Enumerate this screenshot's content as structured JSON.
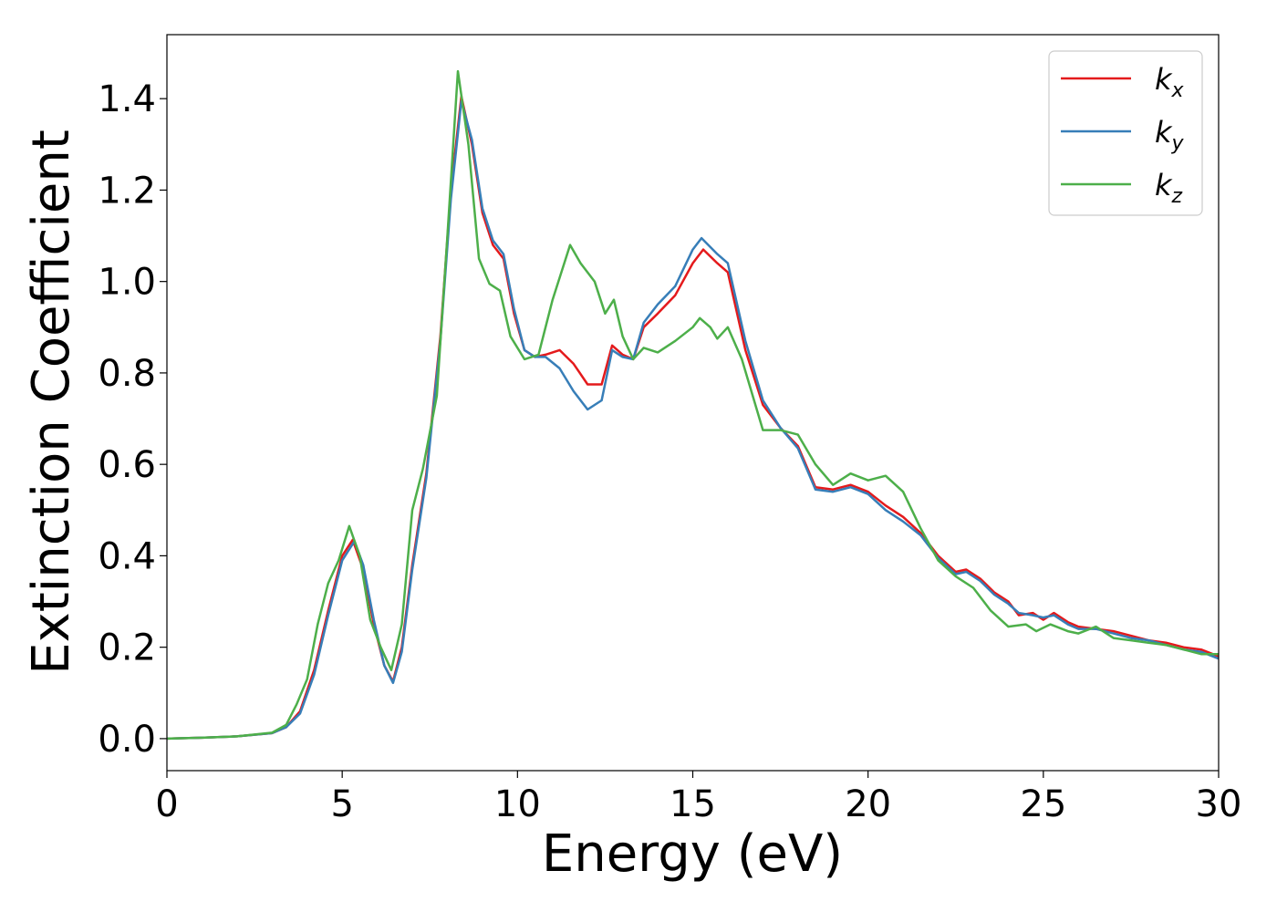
{
  "chart_data": {
    "type": "line",
    "title": "",
    "xlabel": "Energy (eV)",
    "ylabel": "Extinction Coefficient",
    "xlim": [
      0,
      30
    ],
    "ylim": [
      -0.07,
      1.54
    ],
    "xticks": [
      0,
      5,
      10,
      15,
      20,
      25,
      30
    ],
    "xtick_labels": [
      "0",
      "5",
      "10",
      "15",
      "20",
      "25",
      "30"
    ],
    "yticks": [
      0.0,
      0.2,
      0.4,
      0.6,
      0.8,
      1.0,
      1.2,
      1.4
    ],
    "ytick_labels": [
      "0.0",
      "0.2",
      "0.4",
      "0.6",
      "0.8",
      "1.0",
      "1.2",
      "1.4"
    ],
    "grid": false,
    "legend_position": "top-right",
    "series": [
      {
        "name": "k",
        "subscript": "x",
        "color": "#e41a1c",
        "points": [
          [
            0,
            0
          ],
          [
            1,
            0.002
          ],
          [
            2,
            0.005
          ],
          [
            3,
            0.012
          ],
          [
            3.4,
            0.025
          ],
          [
            3.8,
            0.06
          ],
          [
            4.2,
            0.15
          ],
          [
            4.6,
            0.28
          ],
          [
            5.0,
            0.4
          ],
          [
            5.3,
            0.435
          ],
          [
            5.6,
            0.37
          ],
          [
            5.9,
            0.25
          ],
          [
            6.2,
            0.16
          ],
          [
            6.45,
            0.125
          ],
          [
            6.7,
            0.2
          ],
          [
            7.0,
            0.38
          ],
          [
            7.4,
            0.58
          ],
          [
            7.8,
            0.88
          ],
          [
            8.1,
            1.2
          ],
          [
            8.4,
            1.405
          ],
          [
            8.7,
            1.3
          ],
          [
            9.0,
            1.15
          ],
          [
            9.3,
            1.08
          ],
          [
            9.6,
            1.05
          ],
          [
            9.9,
            0.93
          ],
          [
            10.2,
            0.85
          ],
          [
            10.5,
            0.835
          ],
          [
            10.8,
            0.84
          ],
          [
            11.2,
            0.85
          ],
          [
            11.6,
            0.82
          ],
          [
            12.0,
            0.775
          ],
          [
            12.4,
            0.775
          ],
          [
            12.7,
            0.86
          ],
          [
            13.0,
            0.84
          ],
          [
            13.3,
            0.83
          ],
          [
            13.6,
            0.9
          ],
          [
            14.0,
            0.93
          ],
          [
            14.5,
            0.97
          ],
          [
            15.0,
            1.04
          ],
          [
            15.3,
            1.07
          ],
          [
            15.7,
            1.04
          ],
          [
            16.0,
            1.02
          ],
          [
            16.5,
            0.85
          ],
          [
            17.0,
            0.73
          ],
          [
            17.5,
            0.68
          ],
          [
            18.0,
            0.64
          ],
          [
            18.5,
            0.55
          ],
          [
            19.0,
            0.545
          ],
          [
            19.5,
            0.555
          ],
          [
            20.0,
            0.54
          ],
          [
            20.5,
            0.51
          ],
          [
            21.0,
            0.485
          ],
          [
            21.5,
            0.45
          ],
          [
            22.0,
            0.4
          ],
          [
            22.5,
            0.365
          ],
          [
            22.8,
            0.37
          ],
          [
            23.2,
            0.35
          ],
          [
            23.6,
            0.32
          ],
          [
            24.0,
            0.3
          ],
          [
            24.3,
            0.27
          ],
          [
            24.7,
            0.275
          ],
          [
            25.0,
            0.26
          ],
          [
            25.3,
            0.275
          ],
          [
            25.7,
            0.255
          ],
          [
            26.0,
            0.245
          ],
          [
            26.5,
            0.24
          ],
          [
            27.0,
            0.235
          ],
          [
            27.5,
            0.225
          ],
          [
            28.0,
            0.215
          ],
          [
            28.5,
            0.21
          ],
          [
            29.0,
            0.2
          ],
          [
            29.5,
            0.195
          ],
          [
            30.0,
            0.18
          ]
        ]
      },
      {
        "name": "k",
        "subscript": "y",
        "color": "#377eb8",
        "points": [
          [
            0,
            0
          ],
          [
            1,
            0.002
          ],
          [
            2,
            0.005
          ],
          [
            3,
            0.012
          ],
          [
            3.4,
            0.025
          ],
          [
            3.8,
            0.055
          ],
          [
            4.2,
            0.14
          ],
          [
            4.6,
            0.27
          ],
          [
            5.0,
            0.39
          ],
          [
            5.35,
            0.432
          ],
          [
            5.6,
            0.38
          ],
          [
            5.9,
            0.26
          ],
          [
            6.2,
            0.16
          ],
          [
            6.45,
            0.122
          ],
          [
            6.7,
            0.19
          ],
          [
            7.0,
            0.37
          ],
          [
            7.4,
            0.57
          ],
          [
            7.8,
            0.87
          ],
          [
            8.1,
            1.18
          ],
          [
            8.4,
            1.395
          ],
          [
            8.7,
            1.31
          ],
          [
            9.0,
            1.16
          ],
          [
            9.3,
            1.09
          ],
          [
            9.6,
            1.06
          ],
          [
            9.9,
            0.94
          ],
          [
            10.2,
            0.85
          ],
          [
            10.5,
            0.835
          ],
          [
            10.8,
            0.835
          ],
          [
            11.2,
            0.81
          ],
          [
            11.6,
            0.76
          ],
          [
            12.0,
            0.72
          ],
          [
            12.4,
            0.74
          ],
          [
            12.7,
            0.85
          ],
          [
            13.0,
            0.835
          ],
          [
            13.3,
            0.83
          ],
          [
            13.6,
            0.91
          ],
          [
            14.0,
            0.95
          ],
          [
            14.5,
            0.99
          ],
          [
            15.0,
            1.07
          ],
          [
            15.25,
            1.095
          ],
          [
            15.7,
            1.06
          ],
          [
            16.0,
            1.04
          ],
          [
            16.5,
            0.87
          ],
          [
            17.0,
            0.74
          ],
          [
            17.5,
            0.68
          ],
          [
            18.0,
            0.635
          ],
          [
            18.5,
            0.545
          ],
          [
            19.0,
            0.54
          ],
          [
            19.5,
            0.55
          ],
          [
            20.0,
            0.535
          ],
          [
            20.5,
            0.5
          ],
          [
            21.0,
            0.475
          ],
          [
            21.5,
            0.445
          ],
          [
            22.0,
            0.395
          ],
          [
            22.5,
            0.36
          ],
          [
            22.8,
            0.365
          ],
          [
            23.2,
            0.345
          ],
          [
            23.6,
            0.315
          ],
          [
            24.0,
            0.295
          ],
          [
            24.3,
            0.275
          ],
          [
            24.7,
            0.27
          ],
          [
            25.0,
            0.265
          ],
          [
            25.3,
            0.27
          ],
          [
            25.7,
            0.25
          ],
          [
            26.0,
            0.24
          ],
          [
            26.5,
            0.24
          ],
          [
            27.0,
            0.23
          ],
          [
            27.5,
            0.22
          ],
          [
            28.0,
            0.215
          ],
          [
            28.5,
            0.205
          ],
          [
            29.0,
            0.195
          ],
          [
            29.5,
            0.19
          ],
          [
            30.0,
            0.175
          ]
        ]
      },
      {
        "name": "k",
        "subscript": "z",
        "color": "#4daf4a",
        "points": [
          [
            0,
            0
          ],
          [
            1,
            0.002
          ],
          [
            2,
            0.005
          ],
          [
            3,
            0.013
          ],
          [
            3.4,
            0.03
          ],
          [
            3.7,
            0.075
          ],
          [
            4.0,
            0.13
          ],
          [
            4.3,
            0.25
          ],
          [
            4.6,
            0.34
          ],
          [
            4.9,
            0.39
          ],
          [
            5.2,
            0.465
          ],
          [
            5.5,
            0.4
          ],
          [
            5.8,
            0.26
          ],
          [
            6.1,
            0.2
          ],
          [
            6.4,
            0.15
          ],
          [
            6.7,
            0.25
          ],
          [
            7.0,
            0.5
          ],
          [
            7.3,
            0.59
          ],
          [
            7.7,
            0.75
          ],
          [
            8.0,
            1.1
          ],
          [
            8.3,
            1.46
          ],
          [
            8.6,
            1.3
          ],
          [
            8.9,
            1.05
          ],
          [
            9.2,
            0.995
          ],
          [
            9.5,
            0.98
          ],
          [
            9.8,
            0.88
          ],
          [
            10.2,
            0.83
          ],
          [
            10.6,
            0.84
          ],
          [
            11.0,
            0.96
          ],
          [
            11.5,
            1.08
          ],
          [
            11.8,
            1.04
          ],
          [
            12.2,
            1.0
          ],
          [
            12.5,
            0.93
          ],
          [
            12.75,
            0.96
          ],
          [
            13.0,
            0.88
          ],
          [
            13.3,
            0.83
          ],
          [
            13.6,
            0.855
          ],
          [
            14.0,
            0.845
          ],
          [
            14.5,
            0.87
          ],
          [
            15.0,
            0.9
          ],
          [
            15.2,
            0.92
          ],
          [
            15.5,
            0.9
          ],
          [
            15.7,
            0.875
          ],
          [
            16.0,
            0.9
          ],
          [
            16.4,
            0.83
          ],
          [
            17.0,
            0.675
          ],
          [
            17.5,
            0.675
          ],
          [
            18.0,
            0.665
          ],
          [
            18.5,
            0.6
          ],
          [
            19.0,
            0.555
          ],
          [
            19.5,
            0.58
          ],
          [
            20.0,
            0.565
          ],
          [
            20.5,
            0.575
          ],
          [
            21.0,
            0.54
          ],
          [
            21.5,
            0.46
          ],
          [
            22.0,
            0.39
          ],
          [
            22.5,
            0.355
          ],
          [
            23.0,
            0.33
          ],
          [
            23.5,
            0.28
          ],
          [
            24.0,
            0.245
          ],
          [
            24.5,
            0.25
          ],
          [
            24.8,
            0.235
          ],
          [
            25.2,
            0.25
          ],
          [
            25.7,
            0.235
          ],
          [
            26.0,
            0.23
          ],
          [
            26.5,
            0.245
          ],
          [
            27.0,
            0.22
          ],
          [
            27.5,
            0.215
          ],
          [
            28.0,
            0.21
          ],
          [
            28.5,
            0.205
          ],
          [
            29.0,
            0.195
          ],
          [
            29.5,
            0.185
          ],
          [
            30.0,
            0.185
          ]
        ]
      }
    ]
  }
}
